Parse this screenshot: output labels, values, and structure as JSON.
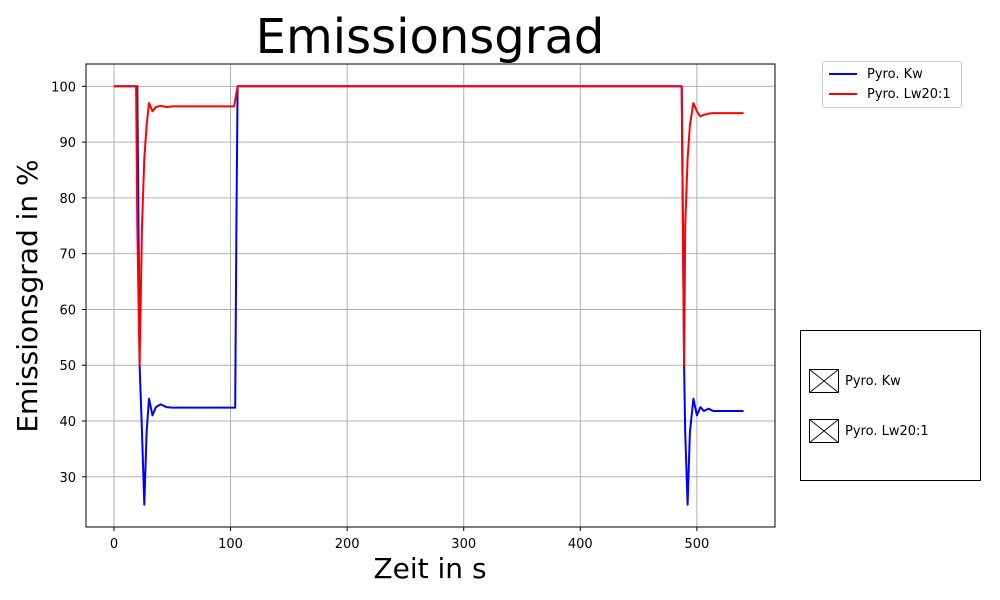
{
  "chart_data": {
    "type": "line",
    "title": "Emissionsgrad",
    "xlabel": "Zeit in s",
    "ylabel": "Emissionsgrad in %",
    "xlim": [
      -24,
      567
    ],
    "ylim": [
      21,
      104
    ],
    "xticks": [
      0,
      100,
      200,
      300,
      400,
      500
    ],
    "yticks": [
      30,
      40,
      50,
      60,
      70,
      80,
      90,
      100
    ],
    "grid": true,
    "legend_position": "upper-right-outside",
    "series": [
      {
        "name": "Pyro. Kw",
        "color": "#0000ff",
        "x": [
          0,
          18,
          20,
          21,
          22,
          24,
          26,
          28,
          30,
          33,
          36,
          40,
          45,
          50,
          55,
          60,
          80,
          100,
          103,
          104,
          105,
          106,
          110,
          200,
          300,
          400,
          486,
          487,
          488,
          489,
          490,
          492,
          494,
          497,
          500,
          503,
          506,
          510,
          514,
          518,
          522,
          540
        ],
        "y": [
          100,
          100,
          100,
          75,
          50,
          38,
          25,
          38,
          44,
          41,
          42.5,
          43,
          42.5,
          42.4,
          42.4,
          42.4,
          42.4,
          42.4,
          42.4,
          42.4,
          75,
          100,
          100,
          100,
          100,
          100,
          100,
          100,
          75,
          50,
          38,
          25,
          38,
          44,
          41,
          42.5,
          41.8,
          42.2,
          41.8,
          41.8,
          41.8,
          41.8
        ]
      },
      {
        "name": "Pyro. Lw20:1",
        "color": "#ff0000",
        "x": [
          0,
          18,
          19,
          20,
          22,
          24,
          26,
          28,
          30,
          33,
          36,
          40,
          45,
          50,
          60,
          80,
          100,
          103,
          106,
          110,
          200,
          300,
          400,
          486,
          487,
          488,
          489,
          490,
          492,
          494,
          497,
          500,
          503,
          506,
          510,
          514,
          518,
          525,
          540
        ],
        "y": [
          100,
          100,
          100,
          75,
          50,
          75,
          87,
          93,
          97,
          95.5,
          96.3,
          96.5,
          96.3,
          96.4,
          96.4,
          96.4,
          96.4,
          96.4,
          100,
          100,
          100,
          100,
          100,
          100,
          100,
          75,
          50,
          75,
          87,
          93,
          97,
          95.5,
          94.6,
          94.9,
          95.1,
          95.2,
          95.2,
          95.2,
          95.2
        ]
      }
    ]
  },
  "toggle_panel": {
    "items": [
      {
        "label": "Pyro. Kw",
        "icon": "checkbox-crossed-icon"
      },
      {
        "label": "Pyro. Lw20:1",
        "icon": "checkbox-crossed-icon"
      }
    ]
  }
}
